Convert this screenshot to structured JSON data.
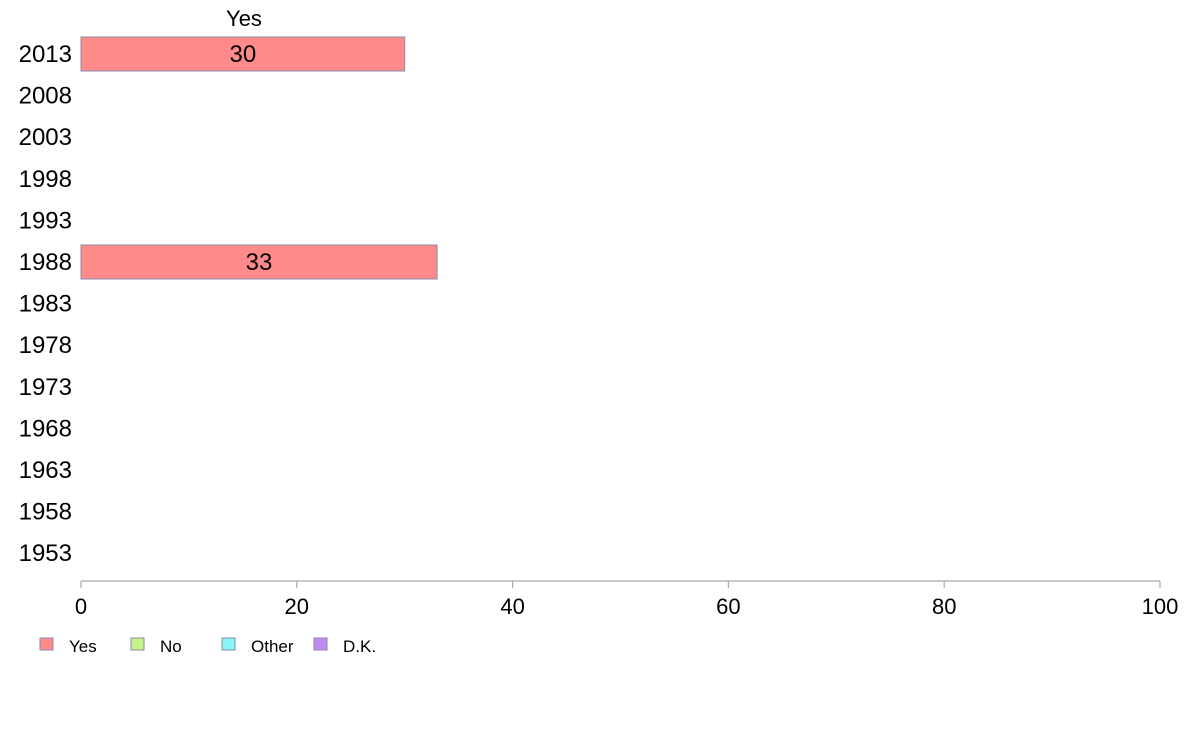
{
  "chart_data": {
    "type": "bar",
    "orientation": "horizontal",
    "categories": [
      "2013",
      "2008",
      "2003",
      "1998",
      "1993",
      "1988",
      "1983",
      "1978",
      "1973",
      "1968",
      "1963",
      "1958",
      "1953"
    ],
    "series": [
      {
        "name": "Yes",
        "values": [
          30,
          null,
          null,
          null,
          null,
          33,
          null,
          null,
          null,
          null,
          null,
          null,
          null
        ],
        "color": "#ff8a8a"
      },
      {
        "name": "No",
        "values": [
          null,
          null,
          null,
          null,
          null,
          null,
          null,
          null,
          null,
          null,
          null,
          null,
          null
        ],
        "color": "#c5f58a"
      },
      {
        "name": "Other",
        "values": [
          null,
          null,
          null,
          null,
          null,
          null,
          null,
          null,
          null,
          null,
          null,
          null,
          null
        ],
        "color": "#8af5f5"
      },
      {
        "name": "D.K.",
        "values": [
          null,
          null,
          null,
          null,
          null,
          null,
          null,
          null,
          null,
          null,
          null,
          null,
          null
        ],
        "color": "#c08af5"
      }
    ],
    "series_header": "Yes",
    "xlim": [
      0,
      100
    ],
    "xticks": [
      "0",
      "20",
      "40",
      "60",
      "80",
      "100"
    ],
    "grid": false,
    "legend": {
      "placement": "bottom-left",
      "entries": [
        "Yes",
        "No",
        "Other",
        "D.K."
      ]
    }
  }
}
